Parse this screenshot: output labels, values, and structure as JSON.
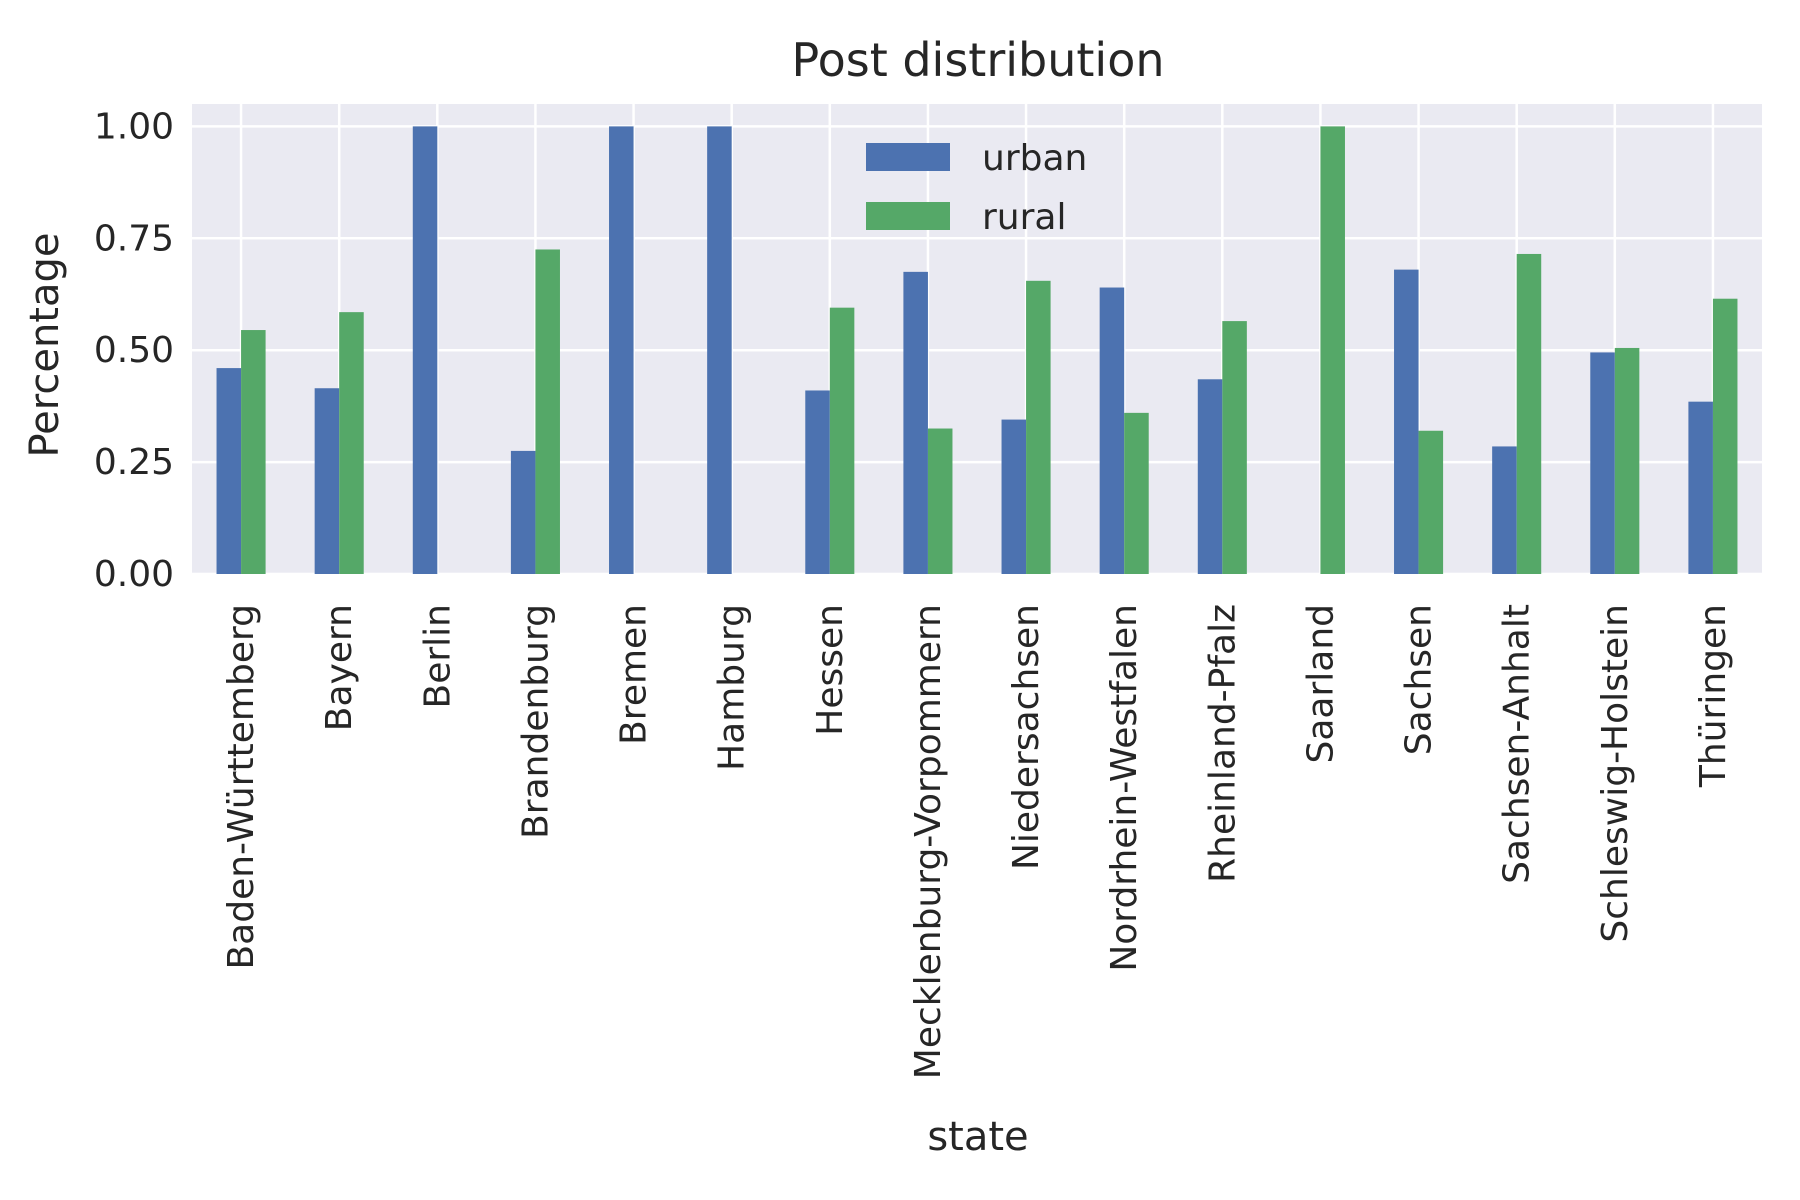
{
  "chart_data": {
    "type": "bar",
    "title": "Post distribution",
    "xlabel": "state",
    "ylabel": "Percentage",
    "ylim": [
      0,
      1.05
    ],
    "yticks": [
      "0.00",
      "0.25",
      "0.50",
      "0.75",
      "1.00"
    ],
    "categories": [
      "Baden-Württemberg",
      "Bayern",
      "Berlin",
      "Brandenburg",
      "Bremen",
      "Hamburg",
      "Hessen",
      "Mecklenburg-Vorpommern",
      "Niedersachsen",
      "Nordrhein-Westfalen",
      "Rheinland-Pfalz",
      "Saarland",
      "Sachsen",
      "Sachsen-Anhalt",
      "Schleswig-Holstein",
      "Thüringen"
    ],
    "series": [
      {
        "name": "urban",
        "color": "#4C72B0",
        "values": [
          0.46,
          0.415,
          1.0,
          0.275,
          1.0,
          1.0,
          0.41,
          0.675,
          0.345,
          0.64,
          0.435,
          0.0,
          0.68,
          0.285,
          0.495,
          0.385
        ]
      },
      {
        "name": "rural",
        "color": "#55A868",
        "values": [
          0.545,
          0.585,
          0.0,
          0.725,
          0.0,
          0.0,
          0.595,
          0.325,
          0.655,
          0.36,
          0.565,
          1.0,
          0.32,
          0.715,
          0.505,
          0.615
        ]
      }
    ],
    "grid": true,
    "legend_position": "upper-center",
    "background_color": "#EAEAF2",
    "grid_color": "#FFFFFF"
  }
}
